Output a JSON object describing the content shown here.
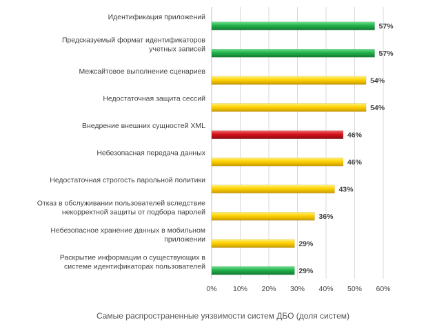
{
  "chart_data": {
    "type": "bar",
    "orientation": "horizontal",
    "title": "",
    "xlabel": "",
    "ylabel": "",
    "caption": "Самые распространенные уязвимости систем ДБО (доля систем)",
    "xlim": [
      0,
      60
    ],
    "x_ticks": [
      "0%",
      "10%",
      "20%",
      "30%",
      "40%",
      "50%",
      "60%"
    ],
    "grid": "vertical",
    "legend": "none",
    "unit": "%",
    "colors": {
      "green": "#22b14c",
      "yellow": "#ffd200",
      "red": "#d4131b"
    },
    "categories": [
      "Идентификация приложений",
      "Предсказуемый формат идентификаторов учетных записей",
      "Межсайтовое выполнение сценариев",
      "Недостаточная защита сессий",
      "Внедрение внешних сущностей XML",
      "Небезопасная передача данных",
      "Недостаточная строгость парольной политики",
      "Отказ в обслуживании пользователей вследствие некорректной защиты от подбора паролей",
      "Небезопасное хранение данных в мобильном приложении",
      "Раскрытие информации о существующих в системе идентификаторах пользователей"
    ],
    "category_lines": [
      [
        "Идентификация приложений"
      ],
      [
        "Предсказуемый формат идентификаторов",
        "учетных записей"
      ],
      [
        "Межсайтовое выполнение сценариев"
      ],
      [
        "Недостаточная защита сессий"
      ],
      [
        "Внедрение внешних сущностей XML"
      ],
      [
        "Небезопасная передача данных"
      ],
      [
        "Недостаточная строгость парольной политики"
      ],
      [
        "Отказ в обслуживании пользователей вследствие",
        "некорректной защиты от подбора паролей"
      ],
      [
        "Небезопасное хранение данных в мобильном",
        "приложении"
      ],
      [
        "Раскрытие информации о существующих в",
        "системе идентификаторах пользователей"
      ]
    ],
    "values": [
      57,
      57,
      54,
      54,
      46,
      46,
      43,
      36,
      29,
      29
    ],
    "value_labels": [
      "57%",
      "57%",
      "54%",
      "54%",
      "46%",
      "46%",
      "43%",
      "36%",
      "29%",
      "29%"
    ],
    "bar_colors": [
      "green",
      "green",
      "yellow",
      "yellow",
      "red",
      "yellow",
      "yellow",
      "yellow",
      "yellow",
      "green"
    ]
  }
}
